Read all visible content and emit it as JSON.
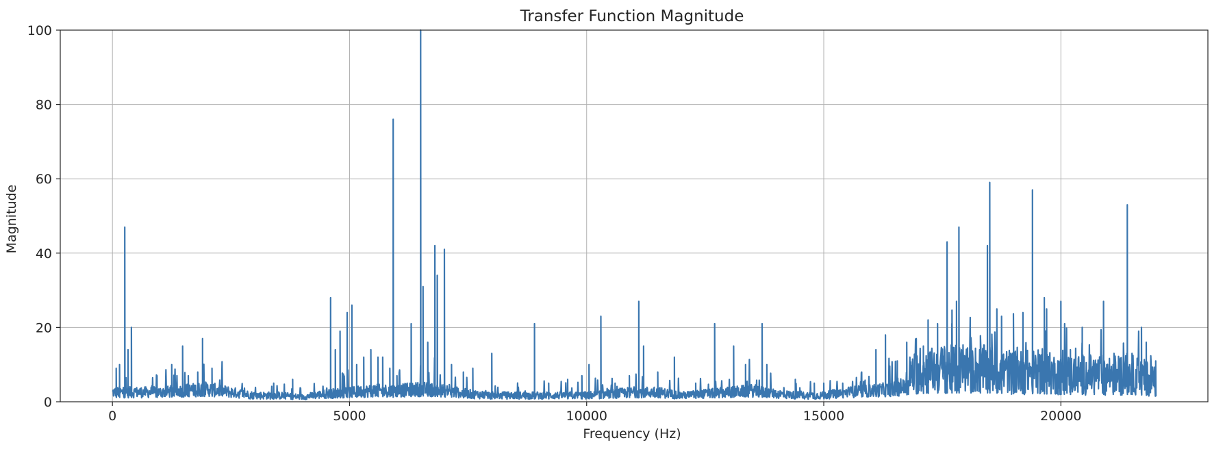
{
  "chart_data": {
    "type": "line",
    "title": "Transfer Function Magnitude",
    "xlabel": "Frequency (Hz)",
    "ylabel": "Magnitude",
    "xlim": [
      -1100,
      23100
    ],
    "ylim": [
      0,
      100
    ],
    "x_ticks": [
      0,
      5000,
      10000,
      15000,
      20000
    ],
    "x_tick_labels": [
      "0",
      "5000",
      "10000",
      "15000",
      "20000"
    ],
    "y_ticks": [
      0,
      20,
      40,
      60,
      80,
      100
    ],
    "y_tick_labels": [
      "0",
      "20",
      "40",
      "60",
      "80",
      "100"
    ],
    "grid": true,
    "series": [
      {
        "color": "#3a76af",
        "noise_floor": [
          [
            0,
            3
          ],
          [
            500,
            3
          ],
          [
            1000,
            3
          ],
          [
            1500,
            3.5
          ],
          [
            2000,
            4
          ],
          [
            2500,
            3
          ],
          [
            3000,
            2
          ],
          [
            3500,
            2
          ],
          [
            4000,
            1.5
          ],
          [
            4500,
            2.5
          ],
          [
            5000,
            3
          ],
          [
            5500,
            3.5
          ],
          [
            6000,
            3.5
          ],
          [
            6500,
            4
          ],
          [
            7000,
            3.5
          ],
          [
            7500,
            2.5
          ],
          [
            8000,
            2
          ],
          [
            8500,
            2
          ],
          [
            9000,
            2
          ],
          [
            9500,
            2
          ],
          [
            10000,
            2
          ],
          [
            10500,
            2.5
          ],
          [
            11000,
            3
          ],
          [
            11500,
            3
          ],
          [
            12000,
            2
          ],
          [
            12500,
            2.5
          ],
          [
            13000,
            3
          ],
          [
            13500,
            3.5
          ],
          [
            14000,
            2.5
          ],
          [
            14500,
            2
          ],
          [
            15000,
            2
          ],
          [
            15500,
            3
          ],
          [
            16000,
            3.5
          ],
          [
            16500,
            4
          ],
          [
            17000,
            5.5
          ],
          [
            17500,
            6
          ],
          [
            18000,
            6
          ],
          [
            18500,
            6
          ],
          [
            19000,
            5.5
          ],
          [
            19500,
            5.5
          ],
          [
            20000,
            5
          ],
          [
            20500,
            5
          ],
          [
            21000,
            5
          ],
          [
            21500,
            5
          ],
          [
            22000,
            4
          ]
        ],
        "peaks": [
          [
            80,
            9
          ],
          [
            150,
            10
          ],
          [
            260,
            47
          ],
          [
            330,
            14
          ],
          [
            400,
            20
          ],
          [
            940,
            7
          ],
          [
            1250,
            10
          ],
          [
            1480,
            15
          ],
          [
            1600,
            7
          ],
          [
            1800,
            8
          ],
          [
            1900,
            17
          ],
          [
            2100,
            9
          ],
          [
            3400,
            5
          ],
          [
            3800,
            6
          ],
          [
            4600,
            28
          ],
          [
            4700,
            14
          ],
          [
            4800,
            19
          ],
          [
            4950,
            24
          ],
          [
            5050,
            26
          ],
          [
            5150,
            10
          ],
          [
            5300,
            12
          ],
          [
            5450,
            14
          ],
          [
            5600,
            12
          ],
          [
            5700,
            12
          ],
          [
            5850,
            9
          ],
          [
            5920,
            76
          ],
          [
            6000,
            7
          ],
          [
            6300,
            21
          ],
          [
            6500,
            100
          ],
          [
            6550,
            31
          ],
          [
            6650,
            16
          ],
          [
            6800,
            42
          ],
          [
            6850,
            34
          ],
          [
            7000,
            41
          ],
          [
            7150,
            10
          ],
          [
            7400,
            8
          ],
          [
            7600,
            9
          ],
          [
            8000,
            13
          ],
          [
            8900,
            21
          ],
          [
            9200,
            5
          ],
          [
            9600,
            6
          ],
          [
            9900,
            7
          ],
          [
            10050,
            10
          ],
          [
            10300,
            23
          ],
          [
            10600,
            5
          ],
          [
            10900,
            7
          ],
          [
            11100,
            27
          ],
          [
            11200,
            15
          ],
          [
            11500,
            8
          ],
          [
            11850,
            12
          ],
          [
            12300,
            5
          ],
          [
            12700,
            21
          ],
          [
            13100,
            15
          ],
          [
            13350,
            10
          ],
          [
            13700,
            21
          ],
          [
            13800,
            10
          ],
          [
            14400,
            6
          ],
          [
            14800,
            5
          ],
          [
            15000,
            5
          ],
          [
            15400,
            5
          ],
          [
            15800,
            8
          ],
          [
            16100,
            14
          ],
          [
            16300,
            18
          ],
          [
            16550,
            11
          ],
          [
            16750,
            16
          ],
          [
            16950,
            17
          ],
          [
            17100,
            15
          ],
          [
            17200,
            22
          ],
          [
            17400,
            21
          ],
          [
            17600,
            43
          ],
          [
            17700,
            21
          ],
          [
            17800,
            27
          ],
          [
            17850,
            47
          ],
          [
            18100,
            10
          ],
          [
            18300,
            13
          ],
          [
            18450,
            42
          ],
          [
            18500,
            59
          ],
          [
            18650,
            25
          ],
          [
            18750,
            23
          ],
          [
            19000,
            12
          ],
          [
            19200,
            24
          ],
          [
            19400,
            57
          ],
          [
            19650,
            28
          ],
          [
            19700,
            25
          ],
          [
            20000,
            27
          ],
          [
            20200,
            14
          ],
          [
            20450,
            20
          ],
          [
            20700,
            10
          ],
          [
            20900,
            27
          ],
          [
            21100,
            10
          ],
          [
            21400,
            53
          ],
          [
            21500,
            13
          ],
          [
            21700,
            20
          ],
          [
            21800,
            16
          ],
          [
            22000,
            11
          ]
        ]
      }
    ]
  }
}
